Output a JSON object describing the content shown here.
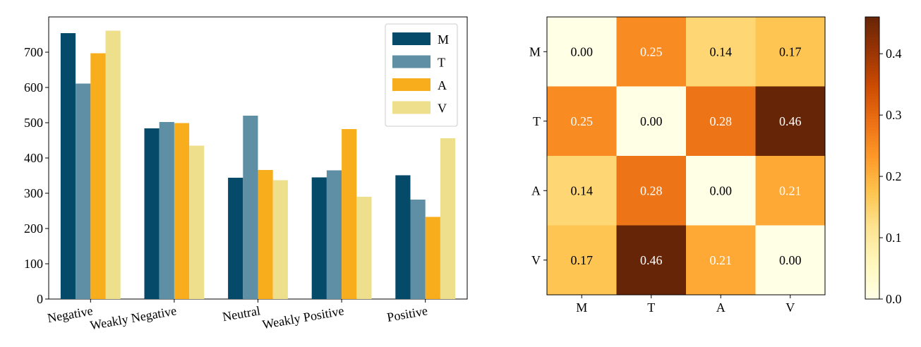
{
  "colors": {
    "M": "#064a6a",
    "T": "#5f8fa5",
    "A": "#f8ad1c",
    "V": "#eedf8c"
  },
  "chart_data": [
    {
      "type": "bar",
      "categories": [
        "Negative",
        "Weakly Negative",
        "Neutral",
        "Weakly Positive",
        "Positive"
      ],
      "series": [
        {
          "name": "M",
          "values": [
            754,
            484,
            344,
            345,
            351
          ]
        },
        {
          "name": "T",
          "values": [
            611,
            502,
            520,
            365,
            282
          ]
        },
        {
          "name": "A",
          "values": [
            697,
            499,
            366,
            482,
            233
          ]
        },
        {
          "name": "V",
          "values": [
            761,
            435,
            337,
            290,
            456
          ]
        }
      ],
      "ylim": [
        0,
        800
      ],
      "yticks": [
        0,
        100,
        200,
        300,
        400,
        500,
        600,
        700
      ],
      "legend": "top-right",
      "grid": false
    },
    {
      "type": "heatmap",
      "rows": [
        "M",
        "T",
        "A",
        "V"
      ],
      "cols": [
        "M",
        "T",
        "A",
        "V"
      ],
      "values": [
        [
          0.0,
          0.25,
          0.14,
          0.17
        ],
        [
          0.25,
          0.0,
          0.28,
          0.46
        ],
        [
          0.14,
          0.28,
          0.0,
          0.21
        ],
        [
          0.17,
          0.46,
          0.21,
          0.0
        ]
      ],
      "value_labels": [
        [
          "0.00",
          "0.25",
          "0.14",
          "0.17"
        ],
        [
          "0.25",
          "0.00",
          "0.28",
          "0.46"
        ],
        [
          "0.14",
          "0.28",
          "0.00",
          "0.21"
        ],
        [
          "0.17",
          "0.46",
          "0.21",
          "0.00"
        ]
      ],
      "colorbar": {
        "min": 0,
        "max": 0.46,
        "ticks": [
          0.0,
          0.1,
          0.2,
          0.3,
          0.4
        ],
        "tick_labels": [
          "0.0",
          "0.1",
          "0.2",
          "0.3",
          "0.4"
        ],
        "colormap": "YlOrBr"
      }
    }
  ]
}
